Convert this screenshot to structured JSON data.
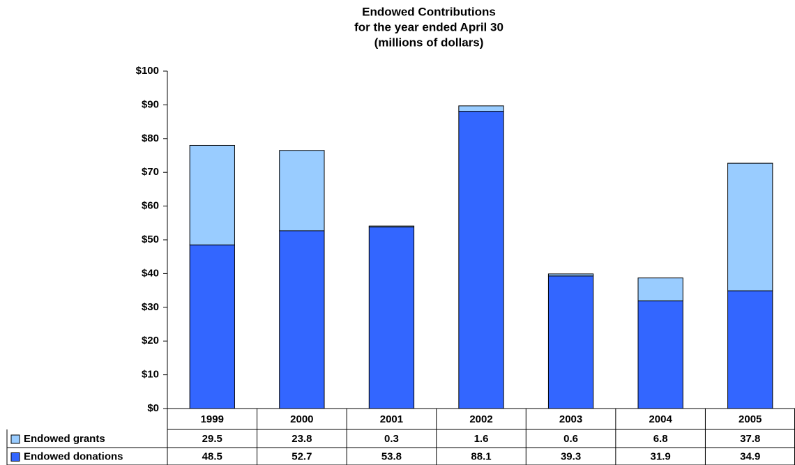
{
  "chart_data": {
    "type": "stacked-bar",
    "title": [
      "Endowed Contributions",
      "for the year ended April 30",
      "(millions of dollars)"
    ],
    "categories": [
      "1999",
      "2000",
      "2001",
      "2002",
      "2003",
      "2004",
      "2005"
    ],
    "series": [
      {
        "name": "Endowed donations",
        "color": "#3366ff",
        "values": [
          48.5,
          52.7,
          53.8,
          88.1,
          39.3,
          31.9,
          34.9
        ]
      },
      {
        "name": "Endowed grants",
        "color": "#99ccff",
        "values": [
          29.5,
          23.8,
          0.3,
          1.6,
          0.6,
          6.8,
          37.8
        ]
      }
    ],
    "ylim": [
      0,
      100
    ],
    "yticks": [
      {
        "value": 0,
        "label": "$0"
      },
      {
        "value": 10,
        "label": "$10"
      },
      {
        "value": 20,
        "label": "$20"
      },
      {
        "value": 30,
        "label": "$30"
      },
      {
        "value": 40,
        "label": "$40"
      },
      {
        "value": 50,
        "label": "$50"
      },
      {
        "value": 60,
        "label": "$60"
      },
      {
        "value": 70,
        "label": "$70"
      },
      {
        "value": 80,
        "label": "$80"
      },
      {
        "value": 90,
        "label": "$90"
      },
      {
        "value": 100,
        "label": "$100"
      }
    ],
    "grid": false
  }
}
